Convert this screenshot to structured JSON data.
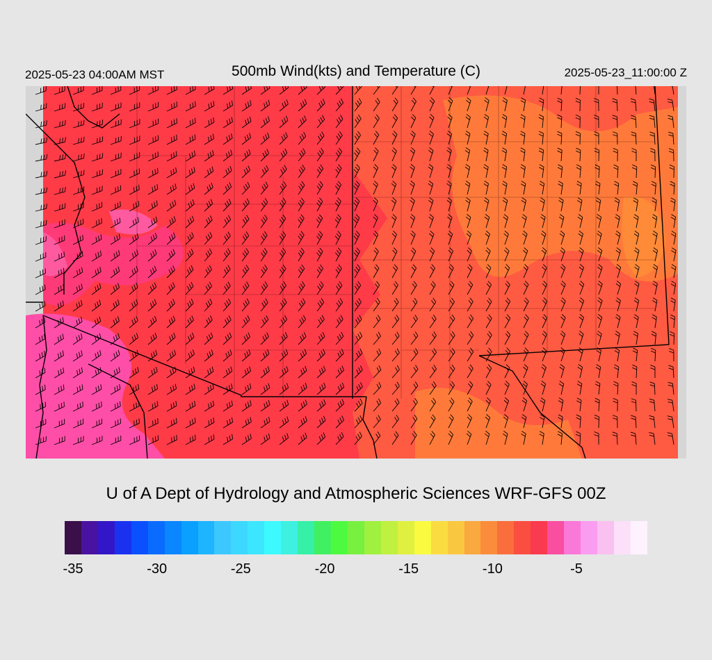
{
  "header": {
    "local_time": "2025-05-23 04:00AM MST",
    "title": "500mb Wind(kts) and Temperature (C)",
    "utc_time": "2025-05-23_11:00:00 Z"
  },
  "credit": "U of A Dept of Hydrology and Atmospheric Sciences WRF-GFS 00Z",
  "colorbar": {
    "colors": [
      "#3a0f4a",
      "#4a12a0",
      "#3316c8",
      "#1a32f0",
      "#0a50ff",
      "#0a6cff",
      "#0a86ff",
      "#0aa0ff",
      "#1eb4ff",
      "#3cc8ff",
      "#3cd8ff",
      "#3ce6ff",
      "#3cfaff",
      "#3ef0e0",
      "#36f0a8",
      "#40f060",
      "#4efa40",
      "#78f040",
      "#a0f040",
      "#c0f040",
      "#e0f040",
      "#fafa40",
      "#fadc40",
      "#fac840",
      "#faa840",
      "#fa8c3c",
      "#fa6e3c",
      "#fa4e40",
      "#fa3a4e",
      "#fa4ea0",
      "#fa78d8",
      "#fa9cf0",
      "#fac0f0",
      "#fce0fa",
      "#fef2fe"
    ],
    "tick_labels": [
      "-35",
      "-30",
      "-25",
      "-20",
      "-15",
      "-10",
      "-5"
    ]
  },
  "map_colors": {
    "base": "#ff3b48",
    "warm": "#ff7a3a",
    "cool": "#ff3a78",
    "cold_pink": "#ff4ea8",
    "borders": "#000000"
  }
}
